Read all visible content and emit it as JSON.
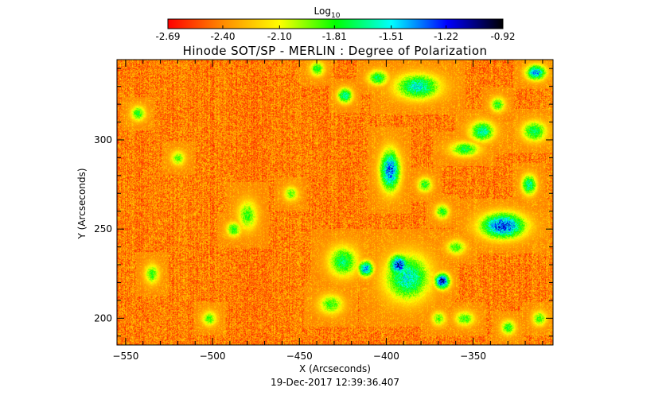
{
  "chart_data": {
    "type": "heatmap",
    "title": "Hinode SOT/SP - MERLIN : Degree of Polarization",
    "xlabel": "X (Arcseconds)",
    "ylabel": "Y (Arcseconds)",
    "timestamp": "19-Dec-2017 12:39:36.407",
    "colorbar": {
      "label_base": "Log",
      "label_sub": "10",
      "tick_labels": [
        "-2.69",
        "-2.40",
        "-2.10",
        "-1.81",
        "-1.51",
        "-1.22",
        "-0.92"
      ],
      "tick_values": [
        -2.69,
        -2.4,
        -2.1,
        -1.81,
        -1.51,
        -1.22,
        -0.92
      ],
      "range": [
        -2.69,
        -0.92
      ],
      "colors": [
        "#ff0000",
        "#ff8c00",
        "#ffff00",
        "#00ff00",
        "#00ffff",
        "#0000ff",
        "#000000"
      ]
    },
    "xlim": [
      -555,
      -304
    ],
    "ylim": [
      185,
      345
    ],
    "x_ticks": [
      -550,
      -500,
      -450,
      -400,
      -350
    ],
    "x_minor_step": 10,
    "y_ticks": [
      200,
      250,
      300
    ],
    "y_minor_step": 10,
    "background_level": -2.42,
    "features": [
      {
        "x": -388,
        "y": 223,
        "sx": 9,
        "sy": 9,
        "level": -1.55
      },
      {
        "x": -368,
        "y": 221,
        "sx": 3,
        "sy": 3,
        "level": -1.15
      },
      {
        "x": -393,
        "y": 230,
        "sx": 4,
        "sy": 4,
        "level": -1.2
      },
      {
        "x": -333,
        "y": 252,
        "sx": 9,
        "sy": 5,
        "level": -1.25
      },
      {
        "x": -398,
        "y": 283,
        "sx": 4,
        "sy": 8,
        "level": -1.3
      },
      {
        "x": -425,
        "y": 232,
        "sx": 6,
        "sy": 6,
        "level": -1.7
      },
      {
        "x": -412,
        "y": 228,
        "sx": 3,
        "sy": 3,
        "level": -1.35
      },
      {
        "x": -382,
        "y": 330,
        "sx": 9,
        "sy": 5,
        "level": -1.55
      },
      {
        "x": -432,
        "y": 208,
        "sx": 5,
        "sy": 4,
        "level": -1.85
      },
      {
        "x": -424,
        "y": 325,
        "sx": 3,
        "sy": 3,
        "level": -1.6
      },
      {
        "x": -405,
        "y": 335,
        "sx": 4,
        "sy": 3,
        "level": -1.7
      },
      {
        "x": -355,
        "y": 295,
        "sx": 6,
        "sy": 3,
        "level": -1.75
      },
      {
        "x": -345,
        "y": 305,
        "sx": 5,
        "sy": 4,
        "level": -1.6
      },
      {
        "x": -315,
        "y": 305,
        "sx": 5,
        "sy": 4,
        "level": -1.7
      },
      {
        "x": -314,
        "y": 338,
        "sx": 4,
        "sy": 3,
        "level": -1.4
      },
      {
        "x": -318,
        "y": 275,
        "sx": 3,
        "sy": 4,
        "level": -1.6
      },
      {
        "x": -378,
        "y": 275,
        "sx": 3,
        "sy": 3,
        "level": -1.8
      },
      {
        "x": -368,
        "y": 260,
        "sx": 3,
        "sy": 3,
        "level": -1.8
      },
      {
        "x": -360,
        "y": 240,
        "sx": 4,
        "sy": 3,
        "level": -1.85
      },
      {
        "x": -480,
        "y": 258,
        "sx": 4,
        "sy": 6,
        "level": -1.85
      },
      {
        "x": -488,
        "y": 250,
        "sx": 3,
        "sy": 3,
        "level": -1.8
      },
      {
        "x": -502,
        "y": 200,
        "sx": 3,
        "sy": 3,
        "level": -1.85
      },
      {
        "x": -535,
        "y": 225,
        "sx": 3,
        "sy": 4,
        "level": -1.85
      },
      {
        "x": -543,
        "y": 315,
        "sx": 3,
        "sy": 3,
        "level": -1.8
      },
      {
        "x": -370,
        "y": 200,
        "sx": 3,
        "sy": 3,
        "level": -1.9
      },
      {
        "x": -355,
        "y": 200,
        "sx": 4,
        "sy": 3,
        "level": -1.85
      },
      {
        "x": -330,
        "y": 195,
        "sx": 3,
        "sy": 3,
        "level": -1.8
      },
      {
        "x": -312,
        "y": 200,
        "sx": 3,
        "sy": 3,
        "level": -1.85
      },
      {
        "x": -440,
        "y": 340,
        "sx": 3,
        "sy": 3,
        "level": -1.8
      },
      {
        "x": -336,
        "y": 320,
        "sx": 3,
        "sy": 3,
        "level": -1.8
      },
      {
        "x": -455,
        "y": 270,
        "sx": 3,
        "sy": 3,
        "level": -1.9
      },
      {
        "x": -520,
        "y": 290,
        "sx": 3,
        "sy": 3,
        "level": -1.9
      }
    ]
  }
}
